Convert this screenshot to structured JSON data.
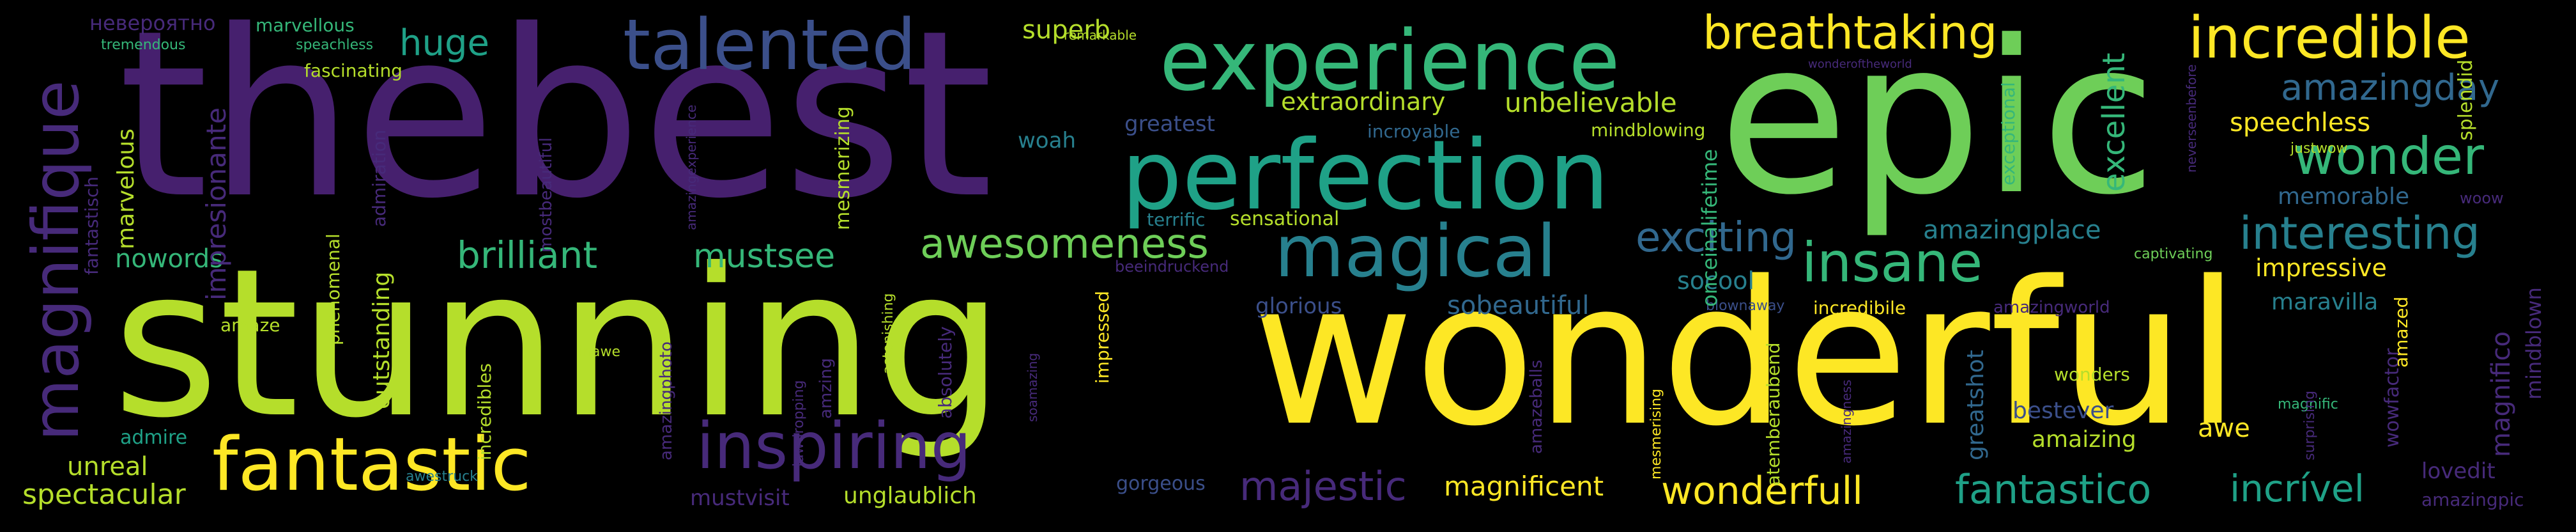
{
  "colors": {
    "background": "#000000",
    "purple": "#46206e",
    "violet": "#472a7a",
    "indigo": "#3b4f8a",
    "blue": "#31688e",
    "teal": "#27808e",
    "turquoise": "#1fa187",
    "green": "#35b779",
    "lime": "#6ece58",
    "yellowgreen": "#b5de2b",
    "yellow": "#fde725"
  },
  "words": {
    "thebest": "thebest",
    "stunning": "stunning",
    "epic": "epic",
    "wonderful": "wonderful",
    "perfection": "perfection",
    "experience": "experience",
    "talented": "talented",
    "magical": "magical",
    "fantastic": "fantastic",
    "inspiring": "inspiring",
    "incredible": "incredible",
    "breathtaking": "breathtaking",
    "insane": "insane",
    "wonder": "wonder",
    "interesting": "interesting",
    "awesomeness": "awesomeness",
    "brilliant": "brilliant",
    "mustsee": "mustsee",
    "magnifique": "magnifique",
    "exciting": "exciting",
    "majestic": "majestic",
    "wonderfull": "wonderfull",
    "fantastico": "fantastico",
    "incrivel": "incrível",
    "amazingday": "amazingday",
    "huge": "huge",
    "spectacular": "spectacular",
    "magnificent": "magnificent",
    "amazingplace": "amazingplace",
    "unbelievable": "unbelievable",
    "extraordinary": "extraordinary",
    "speechless": "speechless",
    "superb": "superb",
    "impressive": "impressive",
    "maravilla": "maravilla",
    "memorable": "memorable",
    "excellent": "excellent",
    "nowords": "nowords",
    "unreal": "unreal",
    "sobeautiful": "sobeautiful",
    "socool": "socool",
    "glorious": "glorious",
    "greatest": "greatest",
    "woah": "woah",
    "bestever": "bestever",
    "amaizing": "amaizing",
    "awe": "awe",
    "lovedit": "lovedit",
    "outstanding": "outstanding",
    "marvelous": "marvelous",
    "impresionante": "impresionante",
    "mesmerizing": "mesmerizing",
    "onceinalifetime": "onceinalifetime",
    "greatshot": "greatshot",
    "magnifico": "magnifico",
    "mustvisit": "mustvisit",
    "unglaublich": "unglaublich",
    "gorgeous": "gorgeous",
    "wonders": "wonders",
    "amazingpic": "amazingpic",
    "sensational": "sensational",
    "mindblowing": "mindblowing",
    "incroyable": "incroyable",
    "terrific": "terrific",
    "fascinating": "fascinating",
    "marvellous": "marvellous",
    "nevероятно": "невероятно",
    "tremendous": "tremendous",
    "speachless": "speachless",
    "admire": "admire",
    "amaze": "amaze",
    "inawe": "inawe",
    "awestruck": "awestruck",
    "impressed": "impressed",
    "captivating": "captivating",
    "incredibile": "incredibile",
    "amazed": "amazed",
    "mindblown": "mindblown",
    "splendid": "splendid",
    "justwow": "justwow",
    "woow": "woow",
    "blownaway": "blownaway",
    "magnific": "magnific",
    "amazingworld": "amazingworld",
    "beeindruckend": "beeindruckend",
    "remarkable": "remarkable",
    "wonderoftheworld": "wonderoftheworld",
    "fantastisch": "fantastisch",
    "admiration": "admiration",
    "phenomenal": "phenomenal",
    "incredibles": "incredibles",
    "mostbeautiful": "mostbeautiful",
    "amazingphoto": "amazingphoto",
    "amazingexperience": "amazingexperience",
    "amzing": "amzing",
    "jawdropping": "jawdropping",
    "astonishing": "astonishing",
    "absolutely": "absolutely",
    "soamazing": "soamazing",
    "amazeballs": "amazeballs",
    "mesmerising": "mesmerising",
    "atemberaubend": "atemberaubend",
    "amazingness": "amazingness",
    "exceptional": "exceptional",
    "neverseenbefore": "neverseenbefore",
    "surprising": "surprising",
    "wowfactor": "wowfactor"
  }
}
